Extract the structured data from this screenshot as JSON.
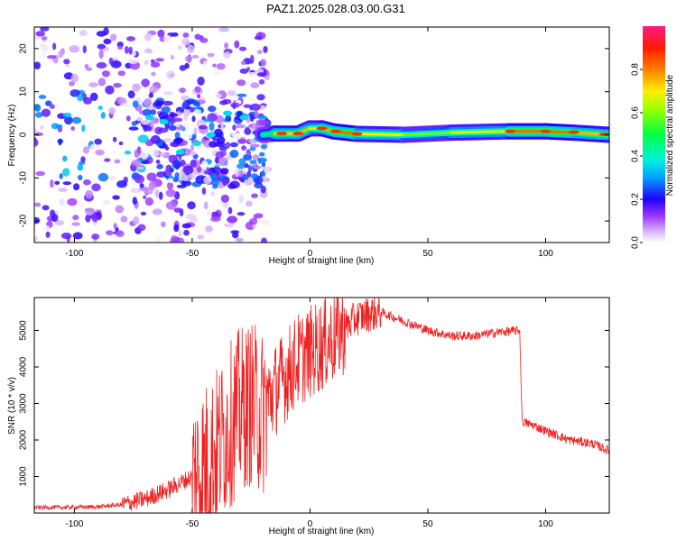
{
  "title": "PAZ1.2025.028.03.00.G31",
  "chart_data": [
    {
      "type": "heatmap",
      "xlabel": "Height of straight line (km)",
      "ylabel": "Frequency (Hz)",
      "xlim": [
        -117,
        127
      ],
      "ylim": [
        -25,
        25
      ],
      "xticks": [
        -100,
        -50,
        0,
        50,
        100
      ],
      "yticks": [
        -20,
        -10,
        0,
        10,
        20
      ],
      "colorbar": {
        "label": "Normalized spectral amplitude",
        "range": [
          0,
          1
        ],
        "ticks": [
          0.0,
          0.2,
          0.4,
          0.6,
          0.8
        ],
        "tick_labels": [
          "0.0",
          "0.2",
          "0.4",
          "0.6",
          "0.8"
        ],
        "colors": [
          "#ffffff",
          "#9d3bff",
          "#0000ff",
          "#00e5ff",
          "#00ff00",
          "#ffff00",
          "#ff8000",
          "#ff0000",
          "#ff1a8c"
        ]
      },
      "ridge": [
        {
          "x": -20,
          "freq": 0.0,
          "amp": 0.4
        },
        {
          "x": -15,
          "freq": 0.3,
          "amp": 0.6
        },
        {
          "x": -5,
          "freq": 0.3,
          "amp": 0.85
        },
        {
          "x": 0,
          "freq": 1.5,
          "amp": 0.65
        },
        {
          "x": 5,
          "freq": 1.5,
          "amp": 0.7
        },
        {
          "x": 10,
          "freq": 0.8,
          "amp": 0.85
        },
        {
          "x": 20,
          "freq": 0.2,
          "amp": 0.8
        },
        {
          "x": 40,
          "freq": 0.0,
          "amp": 0.6
        },
        {
          "x": 60,
          "freq": 0.5,
          "amp": 0.55
        },
        {
          "x": 85,
          "freq": 0.8,
          "amp": 0.8
        },
        {
          "x": 100,
          "freq": 0.8,
          "amp": 0.85
        },
        {
          "x": 112,
          "freq": 0.5,
          "amp": 0.8
        },
        {
          "x": 127,
          "freq": 0.0,
          "amp": 0.7
        }
      ],
      "scatter_clusters": [
        {
          "x_range": [
            -117,
            -18
          ],
          "freq_range": [
            -25,
            25
          ],
          "amp_max": 0.35
        },
        {
          "x_range": [
            -75,
            -18
          ],
          "freq_range": [
            -12,
            8
          ],
          "amp_max": 0.3
        }
      ]
    },
    {
      "type": "line",
      "xlabel": "Height of straight line (km)",
      "ylabel": "SNR (10 * v/v)",
      "xlim": [
        -117,
        127
      ],
      "ylim": [
        0,
        5900
      ],
      "xticks": [
        -100,
        -50,
        0,
        50,
        100
      ],
      "yticks": [
        1000,
        2000,
        3000,
        4000,
        5000
      ],
      "color": "#ee2222",
      "series": [
        {
          "x": [
            -117,
            -100,
            -90,
            -80,
            -70,
            -60,
            -50,
            -45,
            -40,
            -35,
            -30,
            -25,
            -20,
            -18,
            -10,
            -5,
            0,
            5,
            10,
            15,
            20,
            25,
            30,
            40,
            50,
            60,
            70,
            80,
            89,
            90,
            95,
            100,
            110,
            120,
            127
          ],
          "values": [
            150,
            160,
            170,
            230,
            380,
            650,
            1000,
            1300,
            1700,
            2300,
            2800,
            3000,
            2700,
            3100,
            3800,
            4200,
            4400,
            4600,
            4800,
            5100,
            5350,
            5450,
            5500,
            5250,
            5000,
            4850,
            4850,
            4950,
            5000,
            2500,
            2400,
            2250,
            2000,
            1900,
            1700
          ]
        }
      ],
      "noise": [
        {
          "x_range": [
            -117,
            -80
          ],
          "amp": 60
        },
        {
          "x_range": [
            -80,
            -50
          ],
          "amp": 250
        },
        {
          "x_range": [
            -50,
            -18
          ],
          "amp": 2300
        },
        {
          "x_range": [
            -18,
            15
          ],
          "amp": 1300
        },
        {
          "x_range": [
            15,
            30
          ],
          "amp": 500
        },
        {
          "x_range": [
            30,
            89
          ],
          "amp": 130
        },
        {
          "x_range": [
            90,
            127
          ],
          "amp": 130
        }
      ]
    }
  ]
}
